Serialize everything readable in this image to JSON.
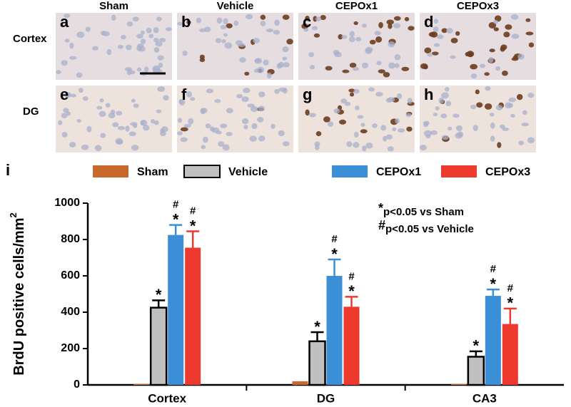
{
  "panels": {
    "columns": [
      "Sham",
      "Vehicle",
      "CEPOx1",
      "CEPOx3"
    ],
    "rows": [
      "Cortex",
      "DG"
    ],
    "letters": [
      [
        "a",
        "b",
        "c",
        "d"
      ],
      [
        "e",
        "f",
        "g",
        "h"
      ]
    ],
    "chart_letter": "i"
  },
  "chart_data": {
    "type": "bar",
    "ylabel": "BrdU positive cells/mm",
    "ylabel_superscript": "2",
    "categories": [
      "Cortex",
      "DG",
      "CA3"
    ],
    "series": [
      {
        "name": "Sham",
        "color": "#c9682c",
        "values": [
          5,
          20,
          5
        ],
        "errors": [
          0,
          0,
          0
        ]
      },
      {
        "name": "Vehicle",
        "color": "#c0c0c0",
        "values": [
          425,
          240,
          155
        ],
        "errors": [
          40,
          50,
          30
        ],
        "annotations": [
          [
            "*"
          ],
          [
            "*"
          ],
          [
            "*"
          ]
        ]
      },
      {
        "name": "CEPOx1",
        "color": "#3b8fd6",
        "values": [
          825,
          600,
          490
        ],
        "errors": [
          55,
          90,
          35
        ],
        "annotations": [
          [
            "#",
            "*"
          ],
          [
            "#",
            "*"
          ],
          [
            "#",
            "*"
          ]
        ]
      },
      {
        "name": "CEPOx3",
        "color": "#ee3a2e",
        "values": [
          755,
          430,
          335
        ],
        "errors": [
          90,
          55,
          85
        ],
        "annotations": [
          [
            "#",
            "*"
          ],
          [
            "#",
            "*"
          ],
          [
            "#",
            "*"
          ]
        ]
      }
    ],
    "ylim": [
      0,
      1000
    ],
    "yticks": [
      0,
      200,
      400,
      600,
      800,
      1000
    ],
    "notes": [
      {
        "symbol": "*",
        "text": "p<0.05 vs Sham"
      },
      {
        "symbol": "#",
        "text": "p<0.05 vs Vehicle"
      }
    ]
  }
}
